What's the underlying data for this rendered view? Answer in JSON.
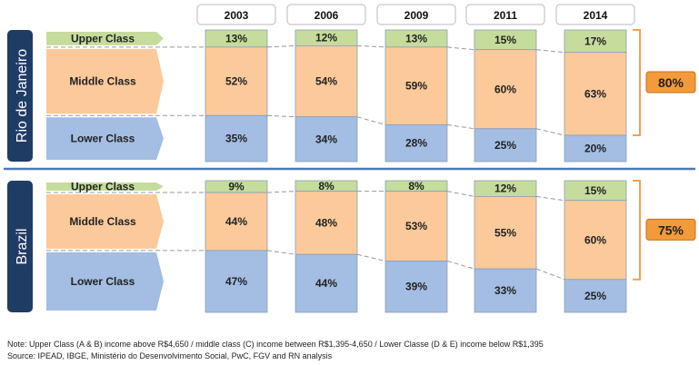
{
  "chart_data": {
    "type": "bar",
    "stacked": true,
    "categories": [
      "2003",
      "2006",
      "2009",
      "2011",
      "2014"
    ],
    "panels": [
      {
        "name": "Rio de Janeiro",
        "series": [
          {
            "name": "Upper Class",
            "values": [
              13,
              12,
              13,
              15,
              17
            ]
          },
          {
            "name": "Middle Class",
            "values": [
              52,
              54,
              59,
              60,
              63
            ]
          },
          {
            "name": "Lower Class",
            "values": [
              35,
              34,
              28,
              25,
              20
            ]
          }
        ],
        "bracket_label": "80%"
      },
      {
        "name": "Brazil",
        "series": [
          {
            "name": "Upper Class",
            "values": [
              9,
              8,
              8,
              12,
              15
            ]
          },
          {
            "name": "Middle Class",
            "values": [
              44,
              48,
              53,
              55,
              60
            ]
          },
          {
            "name": "Lower Class",
            "values": [
              47,
              44,
              39,
              33,
              25
            ]
          }
        ],
        "bracket_label": "75%"
      }
    ],
    "colors": {
      "Upper Class": "#c6dc9c",
      "Middle Class": "#fbc99a",
      "Lower Class": "#a3bde3",
      "panel": "#1f3c64",
      "badge": "#f39a3a"
    }
  },
  "footer": {
    "note": "Note: Upper Class (A & B) income above R$4,650 / middle class (C) income between R$1,395-4,650 / Lower Classe (D & E) income below R$1,395",
    "source": "Source: IPEAD, IBGE, Ministério do Desenvolvimento Social, PwC, FGV and RN analysis"
  }
}
